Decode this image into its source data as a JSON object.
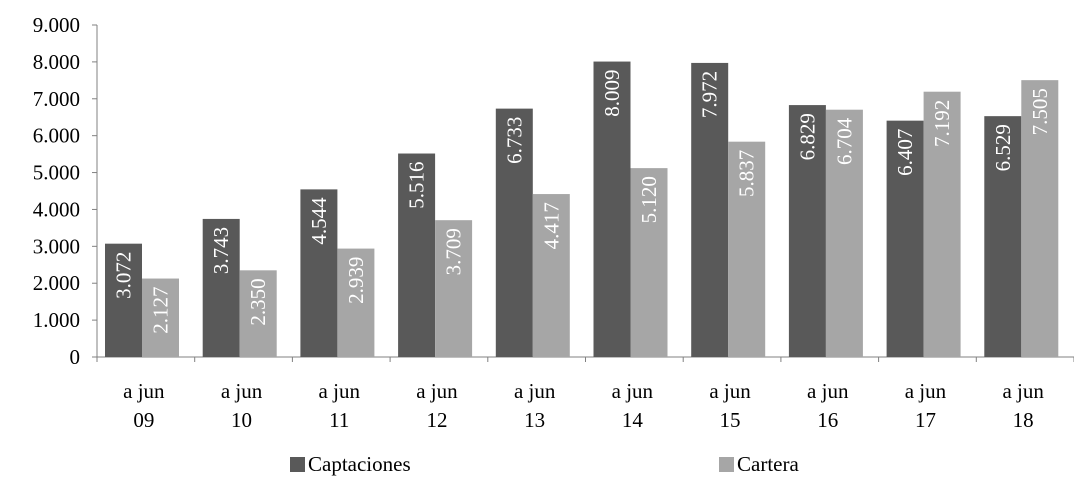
{
  "chart_data": {
    "type": "bar",
    "categories": [
      [
        "a jun",
        "09"
      ],
      [
        "a jun",
        "10"
      ],
      [
        "a jun",
        "11"
      ],
      [
        "a jun",
        "12"
      ],
      [
        "a jun",
        "13"
      ],
      [
        "a jun",
        "14"
      ],
      [
        "a jun",
        "15"
      ],
      [
        "a jun",
        "16"
      ],
      [
        "a jun",
        "17"
      ],
      [
        "a jun",
        "18"
      ]
    ],
    "series": [
      {
        "name": "Captaciones",
        "color": "#595959",
        "values": [
          3072,
          3743,
          4544,
          5516,
          6733,
          8009,
          7972,
          6829,
          6407,
          6529
        ],
        "labels": [
          "3.072",
          "3.743",
          "4.544",
          "5.516",
          "6.733",
          "8.009",
          "7.972",
          "6.829",
          "6.407",
          "6.529"
        ]
      },
      {
        "name": "Cartera",
        "color": "#a6a6a6",
        "values": [
          2127,
          2350,
          2939,
          3709,
          4417,
          5120,
          5837,
          6704,
          7192,
          7505
        ],
        "labels": [
          "2.127",
          "2.350",
          "2.939",
          "3.709",
          "4.417",
          "5.120",
          "5.837",
          "6.704",
          "7.192",
          "7.505"
        ]
      }
    ],
    "ylim": [
      0,
      9000
    ],
    "yticks": [
      0,
      1000,
      2000,
      3000,
      4000,
      5000,
      6000,
      7000,
      8000,
      9000
    ],
    "ytick_labels": [
      "0",
      "1.000",
      "2.000",
      "3.000",
      "4.000",
      "5.000",
      "6.000",
      "7.000",
      "8.000",
      "9.000"
    ],
    "grid": false,
    "legend_position": "bottom"
  }
}
